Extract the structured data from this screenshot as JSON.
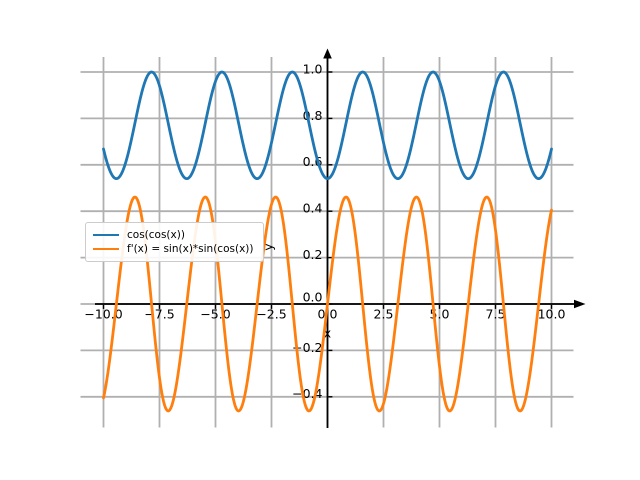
{
  "chart_data": {
    "type": "line",
    "title": "",
    "xlabel": "x",
    "ylabel": "y",
    "grid": true,
    "axis_style": "centered-spines-with-arrowheads",
    "x_range": [
      -10,
      10
    ],
    "y_range_displayed": [
      -0.535,
      1.095
    ],
    "x_ticks": {
      "values": [
        -10,
        -7.5,
        -5,
        -2.5,
        0,
        2.5,
        5,
        7.5,
        10
      ],
      "labels": [
        "−10.0",
        "−7.5",
        "−5.0",
        "−2.5",
        "0.0",
        "2.5",
        "5.0",
        "7.5",
        "10.0"
      ]
    },
    "y_ticks": {
      "values": [
        -0.4,
        -0.2,
        0,
        0.2,
        0.4,
        0.6,
        0.8,
        1.0
      ],
      "labels": [
        "−0.4",
        "−0.2",
        "0.0",
        "0.2",
        "0.4",
        "0.6",
        "0.8",
        "1.0"
      ]
    },
    "legend": {
      "position": "center-left"
    },
    "series": [
      {
        "name": "cos(cos(x))",
        "formula": "cos(cos(x))",
        "color": "#1f77b4",
        "x_min": -10,
        "x_max": 10,
        "sample_step": 0.04,
        "value_range": [
          0.5403,
          1.0
        ],
        "period": 3.14159
      },
      {
        "name": "f'(x) = sin(x)*sin(cos(x))",
        "formula": "sin(x)*sin(cos(x))",
        "color": "#ff7f0e",
        "x_min": -10,
        "x_max": 10,
        "sample_step": 0.04,
        "value_range": [
          -0.462,
          0.462
        ],
        "period": 3.14159
      }
    ]
  },
  "colors": {
    "background": "#ffffff",
    "grid": "#b0b0b0",
    "axis": "#000000",
    "text": "#000000",
    "legend_border": "#cccccc"
  }
}
